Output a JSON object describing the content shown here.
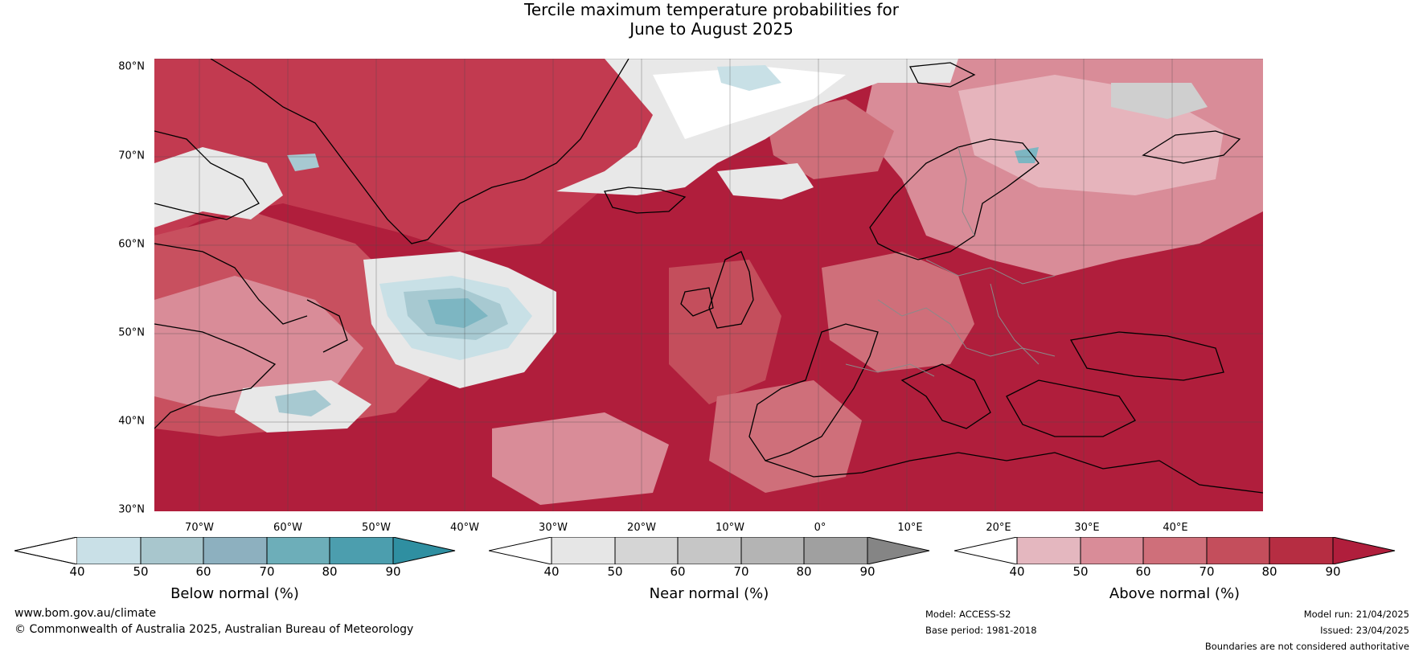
{
  "title": {
    "line1": "Tercile maximum temperature probabilities for",
    "line2": "June to August 2025"
  },
  "map": {
    "lat_labels": [
      "80°N",
      "70°N",
      "60°N",
      "50°N",
      "40°N",
      "30°N"
    ],
    "lon_labels": [
      "70°W",
      "60°W",
      "50°W",
      "40°W",
      "30°W",
      "20°W",
      "10°W",
      "0°",
      "10°E",
      "20°E",
      "30°E",
      "40°E"
    ],
    "colors": {
      "above_90": "#b01e3c",
      "above_80": "#c23a50",
      "above_70": "#cf5d6c",
      "above_60": "#d9838f",
      "above_50": "#e6b4bc",
      "near_high": "#cfcfcf",
      "near_low": "#e8e8e8",
      "below_50": "#c8e0e6",
      "below_60": "#a7c9d1",
      "below_70": "#7db6c2",
      "coastline": "#000000",
      "borders": "#8a8a8a"
    }
  },
  "colorbars": [
    {
      "title": "Below normal (%)",
      "ticks": [
        "40",
        "50",
        "60",
        "70",
        "80",
        "90"
      ],
      "colors": [
        "#ffffff",
        "#c9e0e7",
        "#a8c6cd",
        "#8db0bf",
        "#6daeb9",
        "#4c9eae",
        "#2f8fa1"
      ]
    },
    {
      "title": "Near normal (%)",
      "ticks": [
        "40",
        "50",
        "60",
        "70",
        "80",
        "90"
      ],
      "colors": [
        "#ffffff",
        "#e6e6e6",
        "#d5d5d5",
        "#c6c6c6",
        "#b4b4b4",
        "#a0a0a0",
        "#858585"
      ]
    },
    {
      "title": "Above normal (%)",
      "ticks": [
        "40",
        "50",
        "60",
        "70",
        "80",
        "90"
      ],
      "colors": [
        "#ffffff",
        "#e4b7bf",
        "#d98c98",
        "#cf6f7a",
        "#c44e5c",
        "#b62d42",
        "#b01e3c"
      ]
    }
  ],
  "footer": {
    "website": "www.bom.gov.au/climate",
    "copyright": "© Commonwealth of Australia 2025, Australian Bureau of Meteorology",
    "model": "Model: ACCESS-S2",
    "base_period": "Base period: 1981-2018",
    "model_run": "Model run: 21/04/2025",
    "issued": "Issued: 23/04/2025",
    "disclaimer": "Boundaries are not considered authoritative"
  }
}
